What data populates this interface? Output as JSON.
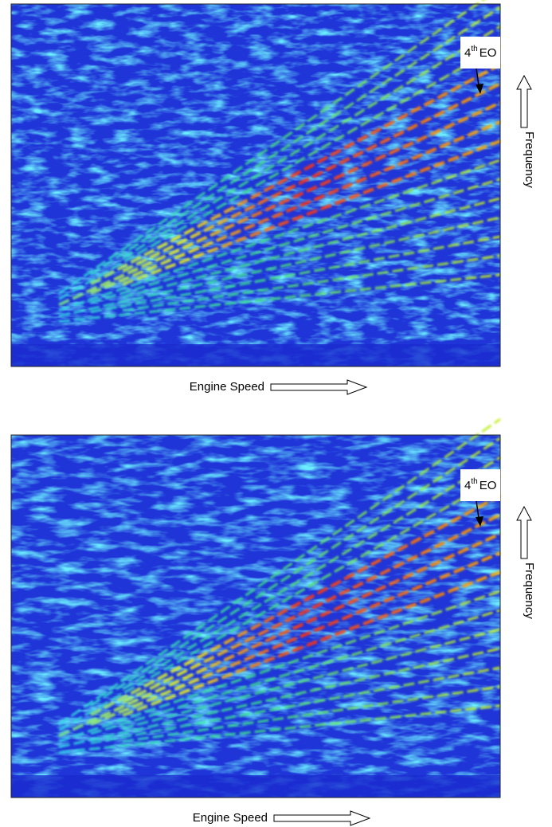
{
  "panels": [
    {
      "annotation": {
        "order": "4",
        "superscript": "th",
        "label": "EO"
      },
      "y_label": "Frequency",
      "x_label": "Engine Speed"
    },
    {
      "annotation": {
        "order": "4",
        "superscript": "th",
        "label": "EO"
      },
      "y_label": "Frequency",
      "x_label": "Engine Speed"
    }
  ]
}
